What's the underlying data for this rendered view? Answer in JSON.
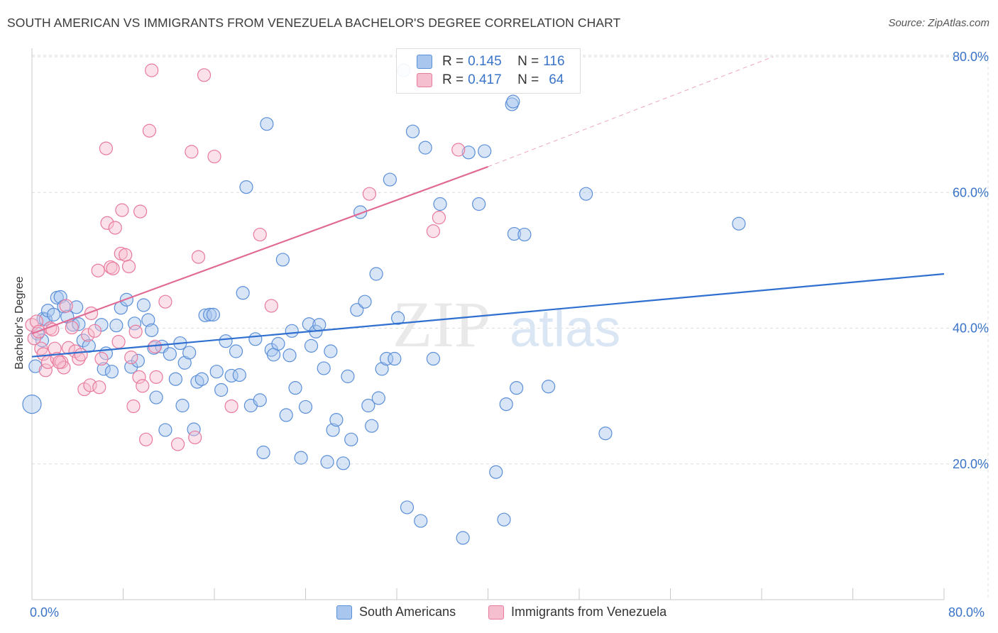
{
  "title": "SOUTH AMERICAN VS IMMIGRANTS FROM VENEZUELA BACHELOR'S DEGREE CORRELATION CHART",
  "source": "Source: ZipAtlas.com",
  "watermark": {
    "zip": "ZIP",
    "atlas": "atlas"
  },
  "legend": {
    "rows": [
      {
        "r_label": "R = ",
        "r_value": "0.145",
        "n_label": "N = ",
        "n_value": "116"
      },
      {
        "r_label": "R = ",
        "r_value": "0.417",
        "n_label": "N = ",
        "n_value": "64"
      }
    ]
  },
  "bottom_legend": [
    "South Americans",
    "Immigrants from Venezuela"
  ],
  "chart_data": {
    "type": "scatter",
    "title": "SOUTH AMERICAN VS IMMIGRANTS FROM VENEZUELA BACHELOR'S DEGREE CORRELATION CHART",
    "xlabel": "",
    "ylabel": "Bachelor's Degree",
    "xlim": [
      0,
      80
    ],
    "ylim": [
      0,
      80
    ],
    "x_tick_labels": [
      "0.0%",
      "80.0%"
    ],
    "y_tick_values": [
      20,
      40,
      60,
      80
    ],
    "y_tick_labels": [
      "20.0%",
      "40.0%",
      "60.0%",
      "80.0%"
    ],
    "grid": true,
    "colors": {
      "south_americans": "#5b8fd8",
      "south_americans_fill": "#a9c6ee",
      "venezuela": "#e87a9c",
      "venezuela_fill": "#f6bfd0",
      "blue_line": "#2e6fcf",
      "pink_line": "#e06a93",
      "tick_label": "#3a74c8"
    },
    "series": [
      {
        "name": "South Americans",
        "r": 0.145,
        "n": 116,
        "trend": {
          "x": [
            0,
            80
          ],
          "y": [
            35.8,
            48.0
          ]
        },
        "points": [
          [
            0.0,
            28.8
          ],
          [
            0.3,
            34.4
          ],
          [
            0.5,
            39.2
          ],
          [
            0.9,
            38.2
          ],
          [
            1.0,
            41.4
          ],
          [
            1.2,
            41.3
          ],
          [
            1.4,
            42.6
          ],
          [
            1.9,
            42.0
          ],
          [
            2.2,
            44.5
          ],
          [
            2.5,
            44.6
          ],
          [
            2.8,
            43.2
          ],
          [
            3.1,
            41.7
          ],
          [
            3.6,
            40.5
          ],
          [
            3.9,
            43.1
          ],
          [
            4.1,
            40.6
          ],
          [
            4.5,
            38.2
          ],
          [
            5.0,
            37.4
          ],
          [
            6.1,
            40.5
          ],
          [
            6.3,
            34.0
          ],
          [
            6.5,
            36.3
          ],
          [
            7.0,
            33.6
          ],
          [
            7.4,
            40.4
          ],
          [
            7.8,
            43.0
          ],
          [
            8.3,
            44.2
          ],
          [
            8.7,
            34.3
          ],
          [
            9.0,
            40.7
          ],
          [
            9.3,
            35.2
          ],
          [
            9.8,
            43.4
          ],
          [
            10.2,
            41.2
          ],
          [
            10.5,
            39.7
          ],
          [
            10.7,
            37.1
          ],
          [
            10.9,
            29.8
          ],
          [
            11.4,
            37.3
          ],
          [
            11.7,
            25.0
          ],
          [
            12.1,
            36.2
          ],
          [
            12.6,
            32.5
          ],
          [
            13.0,
            37.8
          ],
          [
            13.2,
            28.6
          ],
          [
            13.4,
            34.9
          ],
          [
            13.8,
            36.4
          ],
          [
            14.2,
            25.1
          ],
          [
            14.5,
            32.1
          ],
          [
            14.9,
            32.5
          ],
          [
            15.2,
            41.9
          ],
          [
            15.6,
            42.0
          ],
          [
            15.9,
            42.0
          ],
          [
            16.2,
            33.6
          ],
          [
            16.6,
            30.9
          ],
          [
            17.0,
            38.1
          ],
          [
            17.5,
            33.0
          ],
          [
            17.9,
            36.6
          ],
          [
            18.2,
            33.1
          ],
          [
            18.5,
            45.2
          ],
          [
            18.8,
            60.8
          ],
          [
            19.2,
            28.6
          ],
          [
            19.6,
            38.4
          ],
          [
            20.0,
            29.4
          ],
          [
            20.3,
            21.7
          ],
          [
            20.6,
            70.1
          ],
          [
            21.0,
            36.8
          ],
          [
            21.2,
            36.1
          ],
          [
            21.6,
            37.7
          ],
          [
            22.0,
            50.1
          ],
          [
            22.3,
            27.2
          ],
          [
            22.6,
            36.0
          ],
          [
            22.8,
            39.6
          ],
          [
            23.1,
            31.2
          ],
          [
            23.6,
            20.9
          ],
          [
            24.0,
            28.4
          ],
          [
            24.3,
            40.6
          ],
          [
            24.5,
            37.4
          ],
          [
            24.9,
            39.5
          ],
          [
            25.2,
            40.5
          ],
          [
            25.6,
            34.1
          ],
          [
            25.9,
            20.3
          ],
          [
            26.2,
            36.6
          ],
          [
            26.4,
            25.0
          ],
          [
            26.7,
            26.5
          ],
          [
            27.3,
            20.1
          ],
          [
            27.7,
            32.9
          ],
          [
            28.0,
            23.6
          ],
          [
            28.5,
            42.7
          ],
          [
            28.8,
            57.1
          ],
          [
            29.2,
            43.9
          ],
          [
            29.5,
            28.6
          ],
          [
            29.8,
            25.6
          ],
          [
            30.2,
            48.0
          ],
          [
            30.4,
            29.7
          ],
          [
            30.7,
            34.0
          ],
          [
            31.1,
            35.5
          ],
          [
            31.4,
            61.9
          ],
          [
            31.8,
            35.5
          ],
          [
            32.1,
            41.5
          ],
          [
            32.6,
            78.0
          ],
          [
            32.9,
            13.6
          ],
          [
            33.4,
            69.0
          ],
          [
            34.1,
            11.6
          ],
          [
            34.5,
            66.6
          ],
          [
            35.2,
            35.5
          ],
          [
            35.8,
            58.3
          ],
          [
            37.8,
            9.1
          ],
          [
            38.3,
            65.9
          ],
          [
            39.2,
            58.3
          ],
          [
            39.7,
            66.1
          ],
          [
            40.7,
            18.8
          ],
          [
            41.4,
            11.8
          ],
          [
            41.6,
            28.8
          ],
          [
            42.1,
            73.0
          ],
          [
            42.2,
            73.4
          ],
          [
            42.3,
            53.9
          ],
          [
            42.5,
            31.2
          ],
          [
            43.2,
            53.8
          ],
          [
            45.3,
            31.4
          ],
          [
            48.6,
            59.8
          ],
          [
            50.3,
            24.5
          ],
          [
            62.0,
            55.4
          ]
        ]
      },
      {
        "name": "Immigrants from Venezuela",
        "r": 0.417,
        "n": 64,
        "trend": {
          "x": [
            0,
            40
          ],
          "y": [
            39.2,
            63.8
          ]
        },
        "trend_dashed_to": {
          "x": [
            40,
            65
          ],
          "y": [
            63.8,
            80.0
          ]
        },
        "points": [
          [
            0.0,
            40.5
          ],
          [
            0.2,
            38.5
          ],
          [
            0.4,
            41.0
          ],
          [
            0.6,
            39.5
          ],
          [
            0.8,
            37.0
          ],
          [
            1.0,
            36.2
          ],
          [
            1.2,
            33.8
          ],
          [
            1.4,
            35.0
          ],
          [
            1.6,
            40.0
          ],
          [
            2.0,
            37.0
          ],
          [
            2.2,
            35.5
          ],
          [
            2.6,
            35.0
          ],
          [
            2.8,
            34.2
          ],
          [
            3.0,
            43.3
          ],
          [
            3.2,
            37.1
          ],
          [
            3.5,
            40.1
          ],
          [
            3.8,
            36.6
          ],
          [
            4.1,
            35.5
          ],
          [
            4.3,
            36.1
          ],
          [
            4.6,
            31.0
          ],
          [
            4.9,
            39.0
          ],
          [
            5.1,
            31.6
          ],
          [
            5.2,
            42.2
          ],
          [
            5.5,
            39.6
          ],
          [
            5.8,
            48.5
          ],
          [
            5.9,
            31.3
          ],
          [
            6.1,
            35.5
          ],
          [
            6.5,
            66.5
          ],
          [
            6.6,
            55.5
          ],
          [
            6.9,
            49.0
          ],
          [
            7.1,
            48.8
          ],
          [
            7.3,
            54.8
          ],
          [
            7.6,
            38.0
          ],
          [
            7.8,
            51.0
          ],
          [
            7.9,
            57.4
          ],
          [
            8.2,
            50.8
          ],
          [
            8.5,
            49.1
          ],
          [
            8.7,
            35.7
          ],
          [
            8.9,
            28.5
          ],
          [
            9.1,
            39.5
          ],
          [
            9.4,
            32.8
          ],
          [
            9.5,
            57.2
          ],
          [
            9.7,
            31.5
          ],
          [
            10.0,
            23.6
          ],
          [
            10.3,
            69.1
          ],
          [
            10.5,
            78.0
          ],
          [
            10.8,
            37.3
          ],
          [
            10.9,
            32.8
          ],
          [
            11.7,
            43.9
          ],
          [
            12.8,
            22.9
          ],
          [
            14.0,
            66.0
          ],
          [
            14.3,
            23.9
          ],
          [
            14.6,
            50.5
          ],
          [
            15.1,
            77.3
          ],
          [
            16.0,
            65.3
          ],
          [
            17.5,
            28.5
          ],
          [
            20.0,
            53.8
          ],
          [
            21.0,
            43.3
          ],
          [
            29.6,
            59.8
          ],
          [
            35.2,
            54.3
          ],
          [
            35.7,
            56.3
          ],
          [
            37.4,
            66.3
          ],
          [
            2.4,
            35.0
          ],
          [
            1.8,
            39.8
          ]
        ]
      }
    ]
  }
}
